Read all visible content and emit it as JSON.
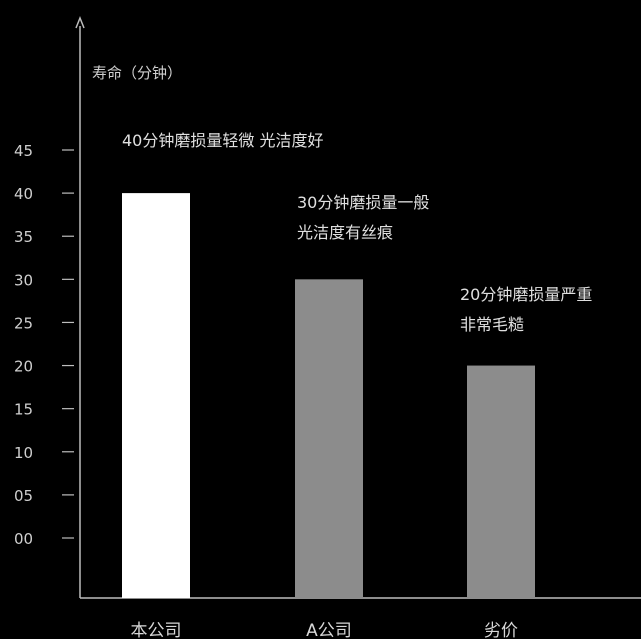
{
  "chart_data": {
    "type": "bar",
    "title": "",
    "xlabel": "",
    "ylabel": "寿命（分钟）",
    "categories": [
      "本公司",
      "A公司",
      "劣价"
    ],
    "values": [
      40,
      30,
      20
    ],
    "ylim": [
      0,
      45
    ],
    "yticks": [
      0,
      5,
      10,
      15,
      20,
      25,
      30,
      35,
      40,
      45
    ],
    "ytick_labels": [
      "00",
      "05",
      "10",
      "15",
      "20",
      "25",
      "30",
      "35",
      "40",
      "45"
    ],
    "bar_colors": [
      "#ffffff",
      "#8c8c8c",
      "#8c8c8c"
    ],
    "annotations": [
      {
        "category": "本公司",
        "lines": [
          "40分钟磨损量轻微 光洁度好"
        ]
      },
      {
        "category": "A公司",
        "lines": [
          "30分钟磨损量一般",
          "光洁度有丝痕"
        ]
      },
      {
        "category": "劣价",
        "lines": [
          "20分钟磨损量严重",
          "非常毛糙"
        ]
      }
    ],
    "grid": false,
    "legend": "none"
  },
  "colors": {
    "background": "#000000",
    "axis": "#bdbdbd",
    "text": "#d8d8d8"
  }
}
